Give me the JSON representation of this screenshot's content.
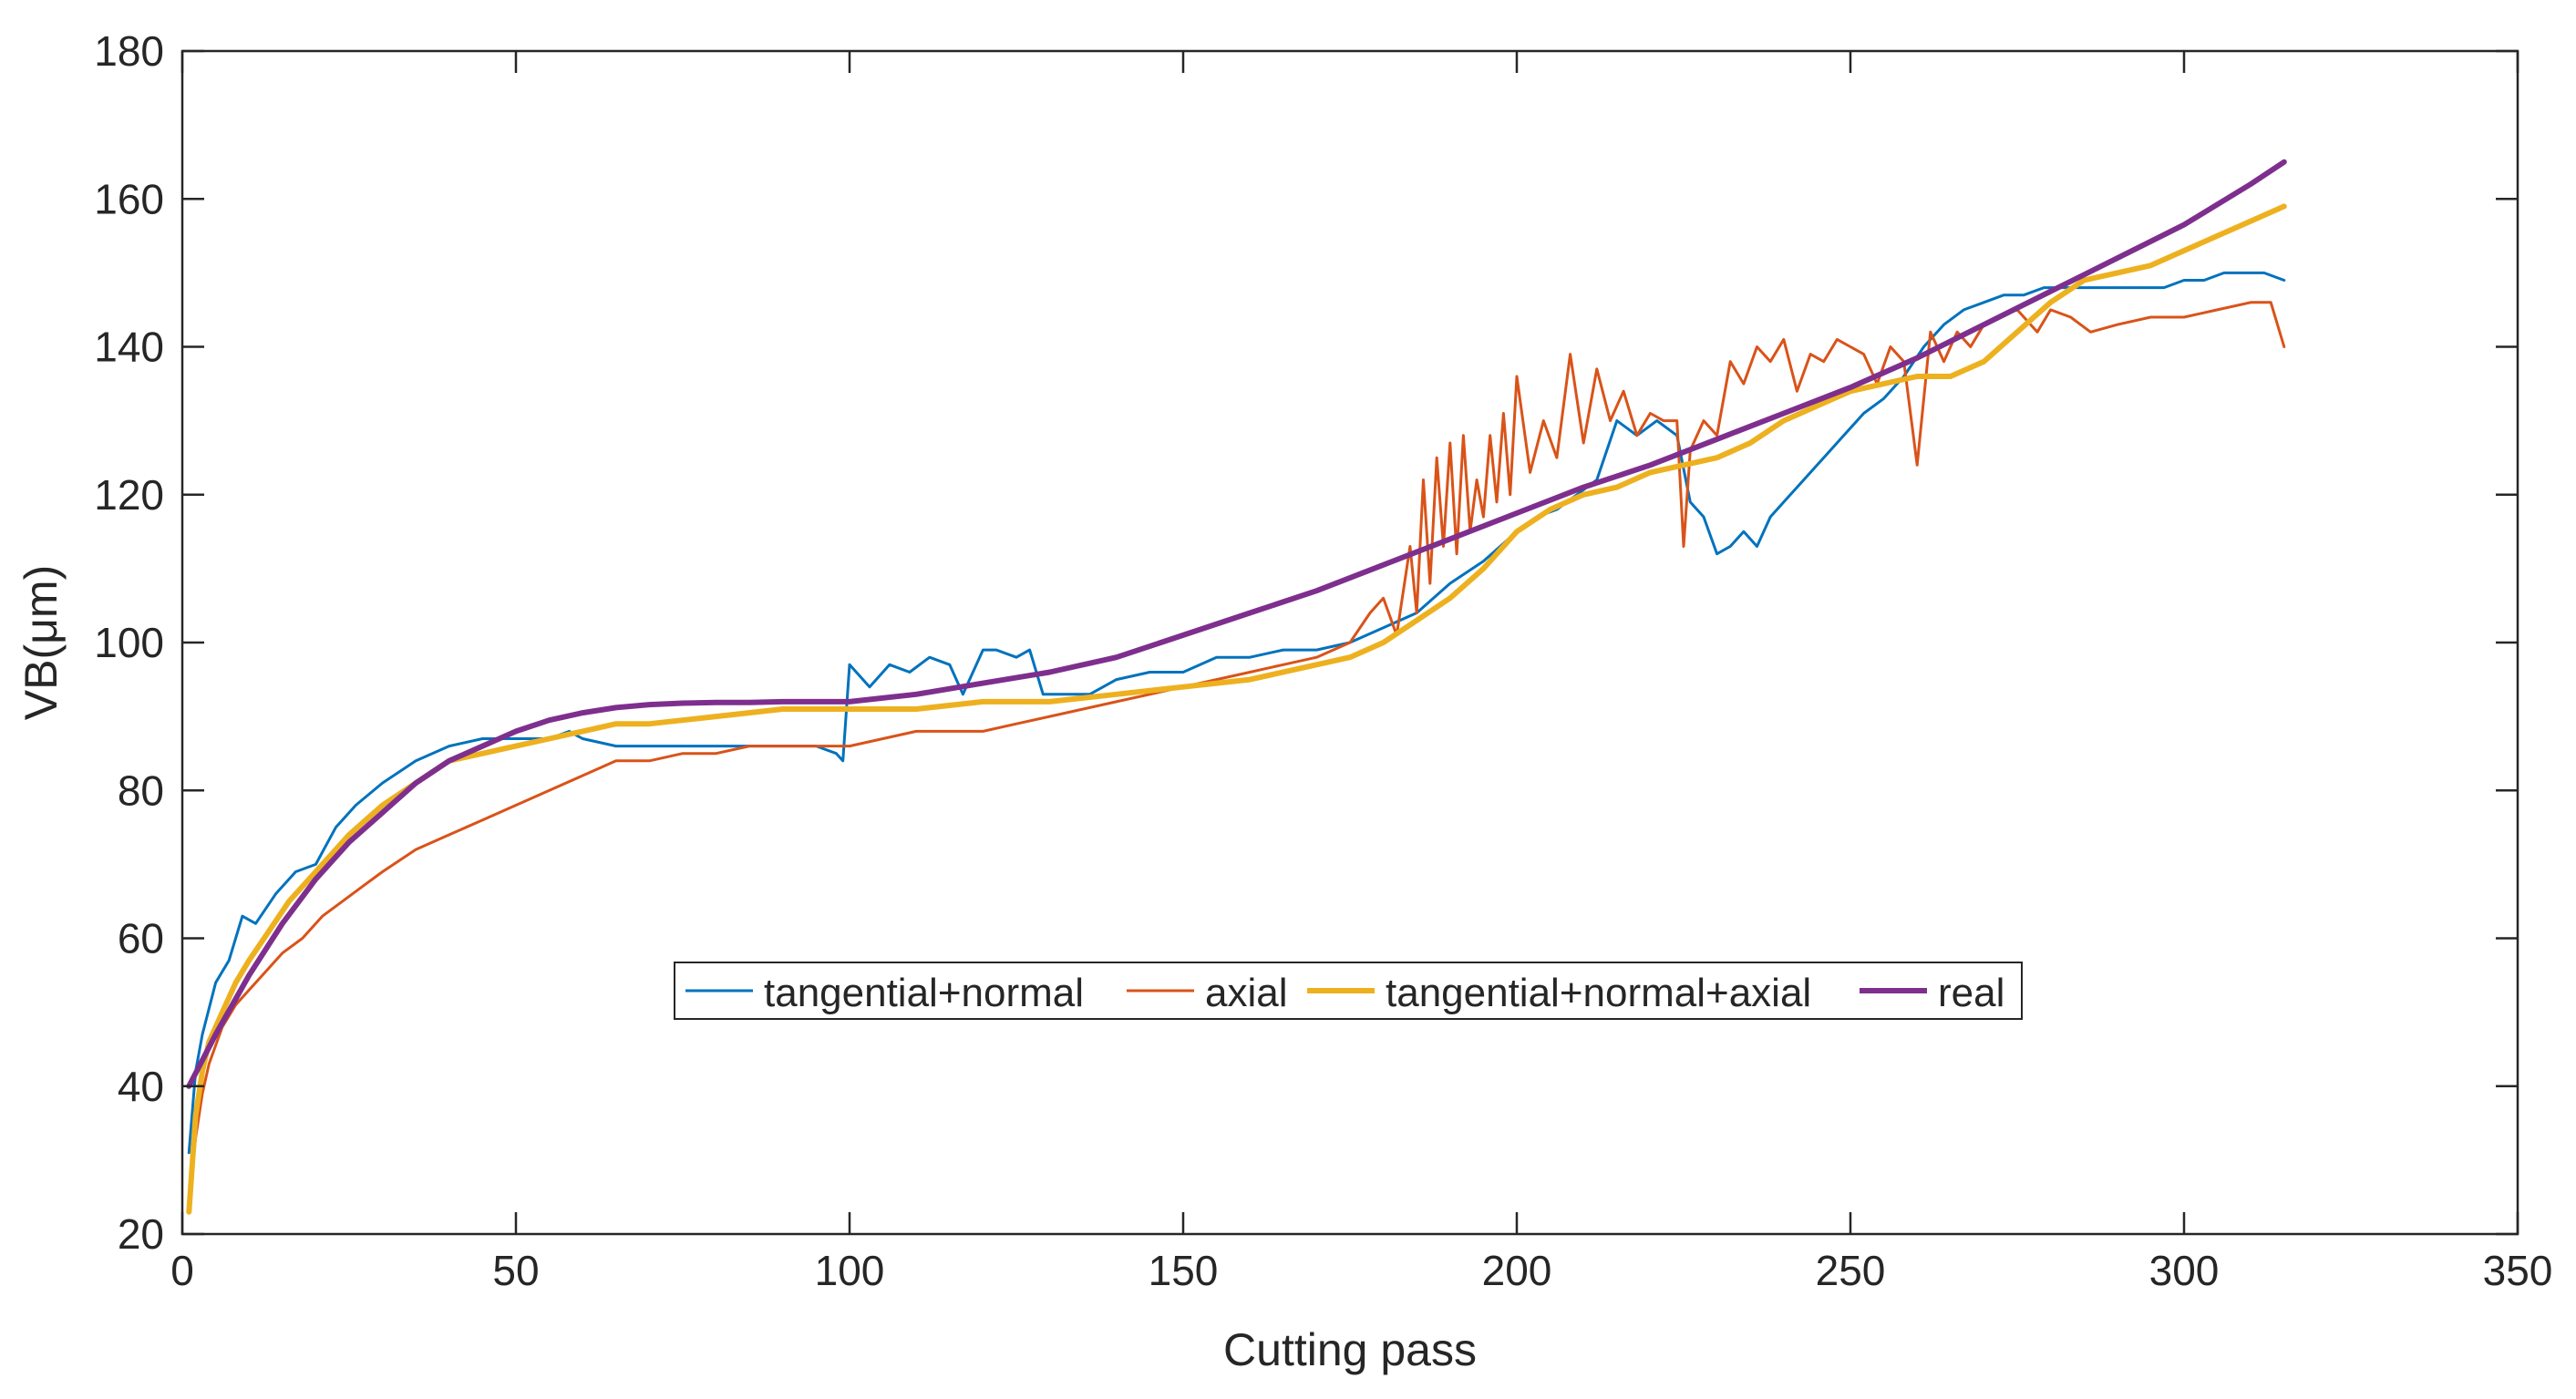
{
  "chart_data": {
    "type": "line",
    "title": "",
    "xlabel": "Cutting pass",
    "ylabel": "VB(μm)",
    "xlim": [
      0,
      350
    ],
    "ylim": [
      20,
      180
    ],
    "xticks": [
      0,
      50,
      100,
      150,
      200,
      250,
      300,
      350
    ],
    "yticks": [
      20,
      40,
      60,
      80,
      100,
      120,
      140,
      160,
      180
    ],
    "grid": false,
    "legend_position": "bottom-center",
    "series": [
      {
        "name": "tangential+normal",
        "color": "#0072BD",
        "x": [
          1,
          2,
          3,
          5,
          7,
          9,
          11,
          14,
          17,
          20,
          23,
          26,
          30,
          35,
          40,
          45,
          50,
          55,
          58,
          60,
          65,
          70,
          75,
          80,
          85,
          90,
          95,
          98,
          99,
          100,
          103,
          106,
          109,
          112,
          115,
          117,
          120,
          122,
          125,
          127,
          129,
          130,
          133,
          136,
          140,
          145,
          150,
          155,
          160,
          165,
          170,
          175,
          180,
          185,
          190,
          195,
          200,
          203,
          206,
          209,
          212,
          215,
          218,
          221,
          224,
          226,
          228,
          230,
          232,
          234,
          236,
          238,
          240,
          243,
          246,
          249,
          252,
          255,
          258,
          261,
          264,
          267,
          270,
          273,
          276,
          279,
          282,
          285,
          288,
          291,
          294,
          297,
          300,
          303,
          306,
          309,
          312,
          315
        ],
        "y": [
          31,
          42,
          47,
          54,
          57,
          63,
          62,
          66,
          69,
          70,
          75,
          78,
          81,
          84,
          86,
          87,
          87,
          87,
          88,
          87,
          86,
          86,
          86,
          86,
          86,
          86,
          86,
          85,
          84,
          97,
          94,
          97,
          96,
          98,
          97,
          93,
          99,
          99,
          98,
          99,
          93,
          93,
          93,
          93,
          95,
          96,
          96,
          98,
          98,
          99,
          99,
          100,
          102,
          104,
          108,
          111,
          115,
          117,
          118,
          120,
          122,
          130,
          128,
          130,
          128,
          119,
          117,
          112,
          113,
          115,
          113,
          117,
          119,
          122,
          125,
          128,
          131,
          133,
          136,
          140,
          143,
          145,
          146,
          147,
          147,
          148,
          148,
          148,
          148,
          148,
          148,
          148,
          149,
          149,
          150,
          150,
          150,
          149
        ]
      },
      {
        "name": "axial",
        "color": "#D95319",
        "x": [
          1,
          2,
          3,
          4,
          6,
          8,
          10,
          12,
          15,
          18,
          21,
          24,
          27,
          30,
          35,
          40,
          45,
          50,
          55,
          60,
          65,
          70,
          75,
          80,
          85,
          90,
          95,
          100,
          105,
          110,
          115,
          120,
          125,
          130,
          135,
          140,
          145,
          150,
          155,
          160,
          165,
          170,
          175,
          178,
          180,
          182,
          184,
          185,
          186,
          187,
          188,
          189,
          190,
          191,
          192,
          193,
          194,
          195,
          196,
          197,
          198,
          199,
          200,
          202,
          204,
          206,
          208,
          210,
          212,
          214,
          216,
          218,
          220,
          222,
          224,
          225,
          226,
          228,
          230,
          232,
          234,
          236,
          238,
          240,
          242,
          244,
          246,
          248,
          250,
          252,
          254,
          256,
          258,
          260,
          262,
          264,
          266,
          268,
          270,
          272,
          275,
          278,
          280,
          283,
          286,
          290,
          295,
          300,
          305,
          310,
          313,
          315
        ],
        "y": [
          24,
          33,
          39,
          43,
          48,
          51,
          53,
          55,
          58,
          60,
          63,
          65,
          67,
          69,
          72,
          74,
          76,
          78,
          80,
          82,
          84,
          84,
          85,
          85,
          86,
          86,
          86,
          86,
          87,
          88,
          88,
          88,
          89,
          90,
          91,
          92,
          93,
          94,
          95,
          96,
          97,
          98,
          100,
          104,
          106,
          101,
          113,
          104,
          122,
          108,
          125,
          113,
          127,
          112,
          128,
          115,
          122,
          117,
          128,
          119,
          131,
          120,
          136,
          123,
          130,
          125,
          139,
          127,
          137,
          130,
          134,
          128,
          131,
          130,
          130,
          113,
          126,
          130,
          128,
          138,
          135,
          140,
          138,
          141,
          134,
          139,
          138,
          141,
          140,
          139,
          135,
          140,
          138,
          124,
          142,
          138,
          142,
          140,
          143,
          144,
          145,
          142,
          145,
          144,
          142,
          143,
          144,
          144,
          145,
          146,
          146,
          140
        ]
      },
      {
        "name": "tangential+normal+axial",
        "color": "#EDB120",
        "x": [
          1,
          2,
          3,
          4,
          6,
          8,
          10,
          13,
          16,
          20,
          25,
          30,
          35,
          40,
          45,
          50,
          55,
          60,
          65,
          70,
          80,
          90,
          100,
          110,
          120,
          130,
          140,
          150,
          160,
          170,
          175,
          180,
          185,
          190,
          195,
          200,
          205,
          210,
          215,
          220,
          225,
          230,
          235,
          240,
          245,
          250,
          255,
          260,
          265,
          270,
          275,
          280,
          285,
          290,
          295,
          300,
          305,
          310,
          315
        ],
        "y": [
          23,
          36,
          42,
          46,
          50,
          54,
          57,
          61,
          65,
          69,
          74,
          78,
          81,
          84,
          85,
          86,
          87,
          88,
          89,
          89,
          90,
          91,
          91,
          91,
          92,
          92,
          93,
          94,
          95,
          97,
          98,
          100,
          103,
          106,
          110,
          115,
          118,
          120,
          121,
          123,
          124,
          125,
          127,
          130,
          132,
          134,
          135,
          136,
          136,
          138,
          142,
          146,
          149,
          150,
          151,
          153,
          155,
          157,
          159
        ]
      },
      {
        "name": "real",
        "color": "#7E2F8E",
        "x": [
          1,
          5,
          10,
          15,
          20,
          25,
          30,
          35,
          40,
          45,
          50,
          55,
          60,
          65,
          70,
          75,
          80,
          85,
          90,
          95,
          100,
          110,
          120,
          130,
          140,
          150,
          160,
          170,
          180,
          190,
          200,
          210,
          220,
          230,
          240,
          250,
          260,
          270,
          280,
          290,
          300,
          310,
          315
        ],
        "y": [
          40,
          47,
          55,
          62,
          68,
          73,
          77,
          81,
          84,
          86,
          88,
          89.5,
          90.5,
          91.2,
          91.6,
          91.8,
          91.9,
          91.9,
          92,
          92,
          92,
          93,
          94.5,
          96,
          98,
          101,
          104,
          107,
          110.5,
          114,
          117.5,
          121,
          124,
          127.5,
          131,
          134.5,
          138.5,
          143,
          147.5,
          152,
          156.5,
          162,
          165
        ]
      }
    ]
  }
}
